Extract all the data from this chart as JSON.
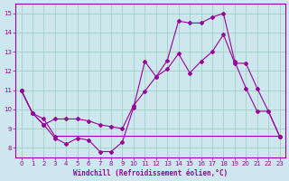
{
  "xlabel": "Windchill (Refroidissement éolien,°C)",
  "background_color": "#cce8ee",
  "line_color": "#990099",
  "grid_color": "#99ccbb",
  "xlim": [
    -0.5,
    23.5
  ],
  "ylim": [
    7.5,
    15.5
  ],
  "yticks": [
    8,
    9,
    10,
    11,
    12,
    13,
    14,
    15
  ],
  "xticks": [
    0,
    1,
    2,
    3,
    4,
    5,
    6,
    7,
    8,
    9,
    10,
    11,
    12,
    13,
    14,
    15,
    16,
    17,
    18,
    19,
    20,
    21,
    22,
    23
  ],
  "line1_x": [
    0,
    1,
    2,
    3,
    4,
    5,
    6,
    7,
    8,
    9,
    10,
    11,
    12,
    13,
    14,
    15,
    16,
    17,
    18,
    19,
    20,
    21,
    22,
    23
  ],
  "line1_y": [
    11.0,
    9.8,
    9.2,
    8.5,
    8.2,
    8.5,
    8.4,
    7.8,
    7.8,
    8.3,
    10.1,
    12.5,
    11.7,
    12.55,
    14.6,
    14.5,
    14.5,
    14.8,
    15.0,
    12.5,
    11.1,
    9.9,
    9.9,
    8.6
  ],
  "line2_x": [
    0,
    1,
    2,
    3,
    23
  ],
  "line2_y": [
    11.0,
    9.8,
    9.5,
    8.6,
    8.6
  ],
  "line3_x": [
    0,
    1,
    2,
    3,
    4,
    5,
    6,
    7,
    8,
    9,
    10,
    11,
    12,
    13,
    14,
    15,
    16,
    17,
    18,
    19,
    20,
    21,
    22,
    23
  ],
  "line3_y": [
    11.0,
    9.8,
    9.2,
    9.5,
    9.5,
    9.5,
    9.4,
    9.2,
    9.1,
    9.0,
    10.2,
    10.95,
    11.7,
    12.1,
    12.9,
    11.9,
    12.5,
    13.0,
    13.9,
    12.4,
    12.4,
    11.1,
    9.9,
    8.6
  ]
}
